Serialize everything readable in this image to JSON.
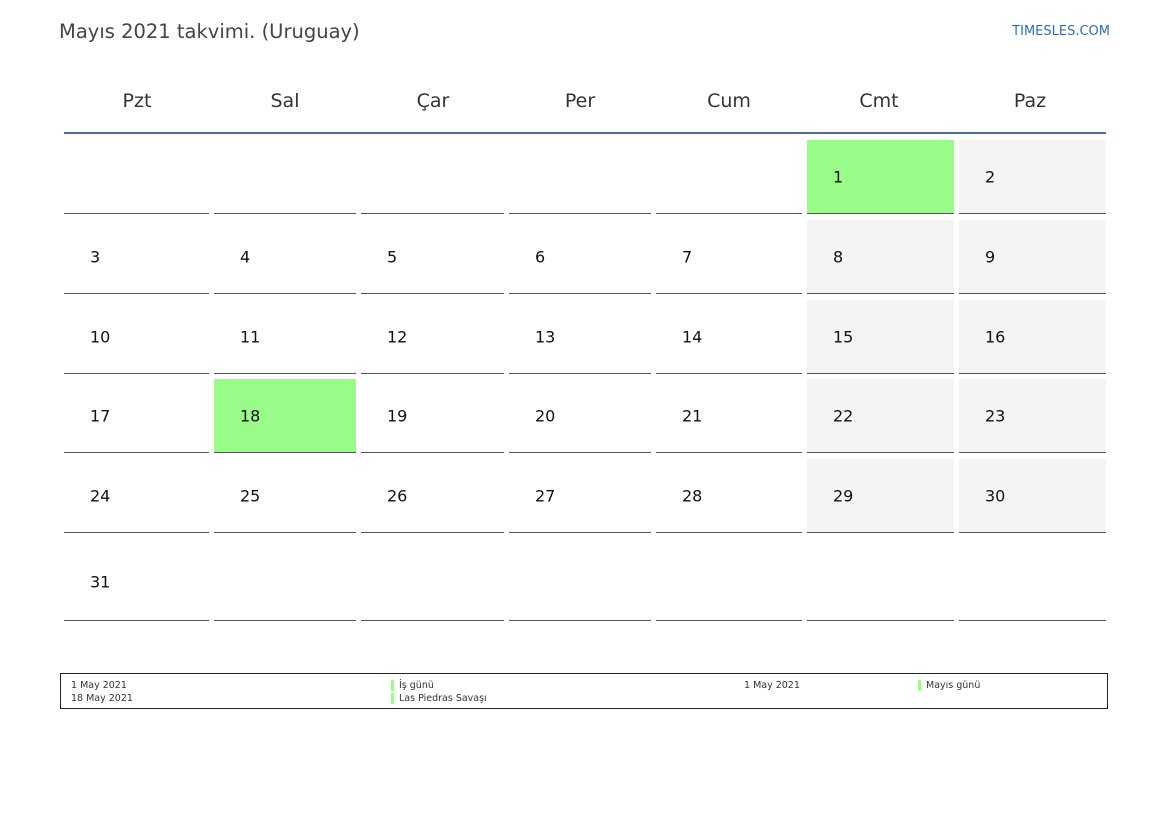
{
  "header": {
    "title": "Mayıs 2021 takvimi. (Uruguay)",
    "site": "TIMESLES.COM"
  },
  "calendar": {
    "weekdays": [
      "Pzt",
      "Sal",
      "Çar",
      "Per",
      "Cum",
      "Cmt",
      "Paz"
    ],
    "weeks": [
      [
        "",
        "",
        "",
        "",
        "",
        "1",
        "2"
      ],
      [
        "3",
        "4",
        "5",
        "6",
        "7",
        "8",
        "9"
      ],
      [
        "10",
        "11",
        "12",
        "13",
        "14",
        "15",
        "16"
      ],
      [
        "17",
        "18",
        "19",
        "20",
        "21",
        "22",
        "23"
      ],
      [
        "24",
        "25",
        "26",
        "27",
        "28",
        "29",
        "30"
      ],
      [
        "31",
        "",
        "",
        "",
        "",
        "",
        ""
      ]
    ],
    "holidays": [
      "1",
      "18"
    ],
    "colors": {
      "holiday": "#99fb88",
      "weekend": "#f4f4f4",
      "header_rule": "#4f6d8f",
      "site_link": "#2e6fb3"
    }
  },
  "legend": {
    "col1": [
      "1 May 2021",
      "18 May 2021"
    ],
    "col2": [
      "İş günü",
      "Las Piedras Savaşı"
    ],
    "col3": [
      "1 May 2021"
    ],
    "col4": [
      "Mayıs günü"
    ]
  }
}
